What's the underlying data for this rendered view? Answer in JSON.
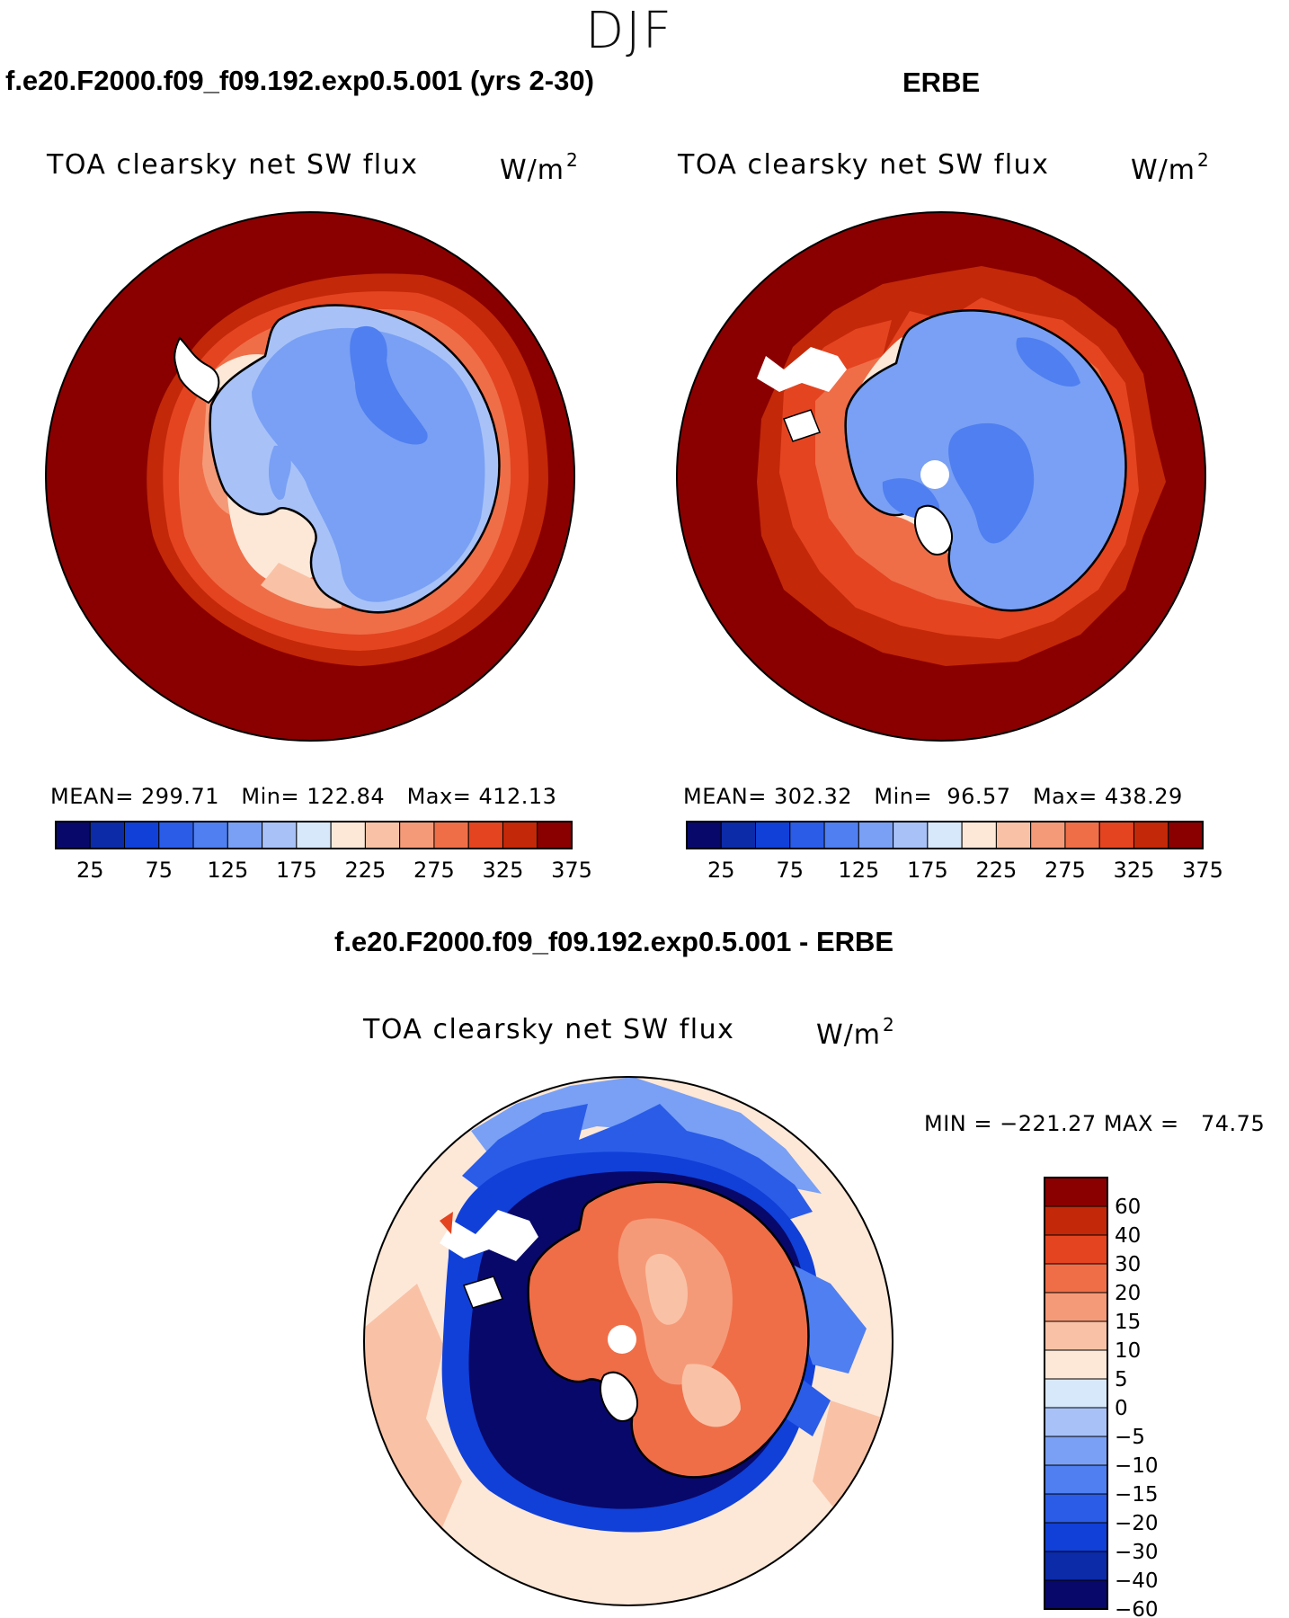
{
  "season": "DJF",
  "panels": [
    {
      "id": "model",
      "case_title": "f.e20.F2000.f09_f09.192.exp0.5.001 (yrs 2-30)",
      "variable": "TOA clearsky net SW flux",
      "units": "W/m",
      "units_exp": "2",
      "mean_label": "MEAN=",
      "mean": "299.71",
      "min_label": "Min=",
      "min": "122.84",
      "max_label": "Max=",
      "max": "412.13"
    },
    {
      "id": "obs",
      "case_title": "ERBE",
      "variable": "TOA clearsky net SW flux",
      "units": "W/m",
      "units_exp": "2",
      "mean_label": "MEAN=",
      "mean": "302.32",
      "min_label": "Min=",
      "min": "96.57",
      "max_label": "Max=",
      "max": "438.29"
    }
  ],
  "difference": {
    "case_title": "f.e20.F2000.f09_f09.192.exp0.5.001 - ERBE",
    "variable": "TOA clearsky net SW flux",
    "units": "W/m",
    "units_exp": "2",
    "minmax_text": "MIN = −221.27 MAX =   74.75"
  },
  "colorbar_abs": {
    "colors": [
      "#08086b",
      "#0b2ba8",
      "#1040d8",
      "#2a5ce8",
      "#4f7ff0",
      "#79a0f4",
      "#a8c2f8",
      "#d8e8fb",
      "#fde8d8",
      "#f9c2a6",
      "#f59a78",
      "#ef6e48",
      "#e44420",
      "#c32808",
      "#8a0000"
    ],
    "labels": [
      "25",
      "75",
      "125",
      "175",
      "225",
      "275",
      "325",
      "375"
    ]
  },
  "colorbar_diff": {
    "colors": [
      "#8a0000",
      "#c32808",
      "#e44420",
      "#ef6e48",
      "#f59a78",
      "#f9c2a6",
      "#fde8d8",
      "#d8e8fb",
      "#a8c2f8",
      "#79a0f4",
      "#4f7ff0",
      "#2a5ce8",
      "#1040d8",
      "#0b2ba8",
      "#08086b"
    ],
    "labels": [
      "60",
      "40",
      "30",
      "20",
      "15",
      "10",
      "5",
      "0",
      "−5",
      "−10",
      "−15",
      "−20",
      "−30",
      "−40",
      "−60"
    ]
  }
}
